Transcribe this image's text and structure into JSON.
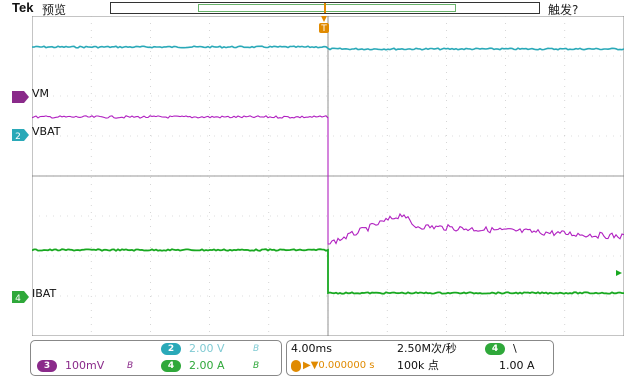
{
  "header": {
    "brand": "Tek",
    "mode": "预览",
    "trigger_status": "触发?"
  },
  "channels": [
    {
      "id": "1",
      "label": "VM",
      "color": "#8a2a8a"
    },
    {
      "id": "2",
      "label": "VBAT",
      "color": "#2aa9b8"
    },
    {
      "id": "4",
      "label": "IBAT",
      "color": "#2fa83a"
    }
  ],
  "trigger_marker": "T",
  "footer": {
    "ch2_badge": "2",
    "ch2_scale": "2.00 V",
    "ch3_badge": "3",
    "ch3_scale": "100mV",
    "ch4_badge": "4",
    "ch4_scale": "2.00 A",
    "bw_symbol": "B",
    "bw_symbol2": "B",
    "bw_symbol3": "B",
    "timebase": "4.00ms",
    "sample_rate": "2.50M次/秒",
    "trigger_pos": "▶▼0.000000 s",
    "record_length": "100k 点",
    "trig_badge": "4",
    "trig_slope": "\\",
    "trig_level": "1.00 A"
  },
  "colors": {
    "vbat": "#2aa9b8",
    "vm": "#b01fc0",
    "ibat": "#18a820",
    "trigger": "#e08a00"
  }
}
